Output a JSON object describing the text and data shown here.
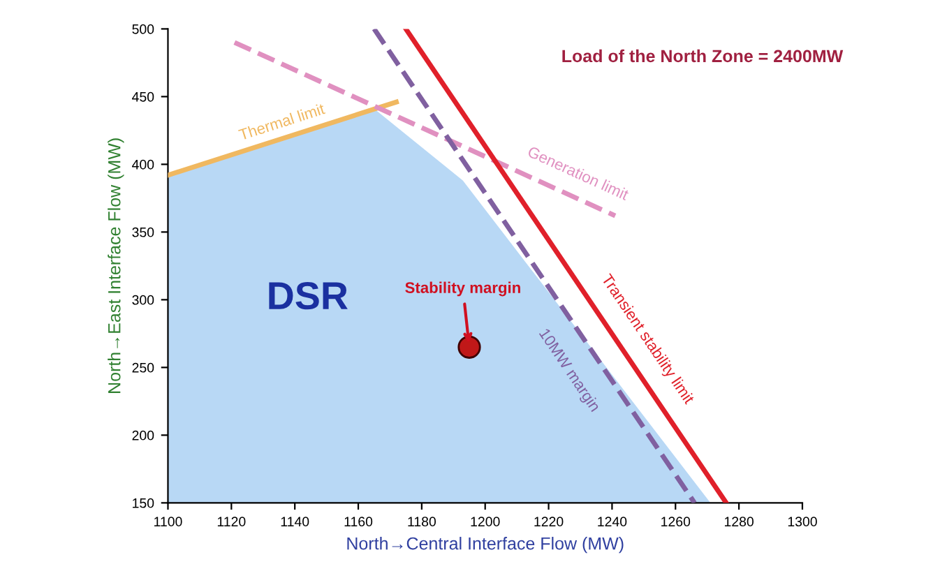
{
  "chart_data": {
    "type": "line",
    "xlabel": "North→Central Interface Flow (MW)",
    "ylabel": "North→East Interface Flow (MW)",
    "xlim": [
      1100,
      1300
    ],
    "ylim": [
      150,
      500
    ],
    "xticks": [
      1100,
      1120,
      1140,
      1160,
      1180,
      1200,
      1220,
      1240,
      1260,
      1280,
      1300
    ],
    "yticks": [
      150,
      200,
      250,
      300,
      350,
      400,
      450,
      500
    ],
    "grid": false,
    "series": [
      {
        "type": "area",
        "color": "#b8d8f5",
        "x": [
          1100,
          1165,
          1193,
          1271
        ],
        "values": [
          392,
          441,
          388,
          150
        ]
      },
      {
        "name": "Thermal limit",
        "color": "#f0b860",
        "line_style": "solid",
        "x": [
          1100,
          1172
        ],
        "values": [
          392,
          446
        ]
      },
      {
        "name": "Generation limit",
        "color": "#e090c0",
        "line_style": "dashed",
        "x": [
          1121,
          1241
        ],
        "values": [
          490,
          362
        ]
      },
      {
        "name": "10MW margin",
        "color": "#8060a0",
        "line_style": "dashed",
        "x": [
          1165,
          1266
        ],
        "values": [
          500,
          150
        ]
      },
      {
        "name": "Transient stability limit",
        "color": "#e0202a",
        "line_style": "solid",
        "x": [
          1175,
          1276
        ],
        "values": [
          500,
          150
        ]
      },
      {
        "type": "scatter",
        "color": "#c01818",
        "x": [
          1195
        ],
        "values": [
          265
        ]
      }
    ],
    "annotations": [
      "DSR",
      {
        "text": "Stability margin",
        "x": 1195,
        "y": 265
      },
      "Load of the North Zone = 2400MW"
    ]
  }
}
